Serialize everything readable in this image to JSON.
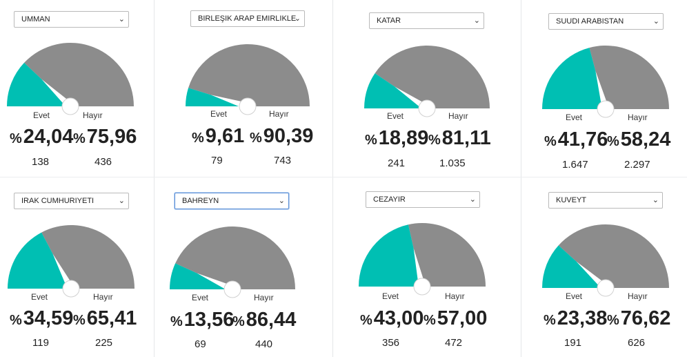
{
  "labels": {
    "yes": "Evet",
    "no": "Hayır",
    "percent_symbol": "%"
  },
  "colors": {
    "yes": "#00bfb3",
    "no": "#8c8c8c",
    "needle": "#ffffff"
  },
  "chart_data": [
    {
      "type": "gauge",
      "title": "UMMAN",
      "series": [
        {
          "name": "Evet",
          "percent": "24,04",
          "value": 24.04,
          "count": "138"
        },
        {
          "name": "Hayır",
          "percent": "75,96",
          "value": 75.96,
          "count": "436"
        }
      ]
    },
    {
      "type": "gauge",
      "title": "BIRLEŞIK ARAP EMIRLIKLE",
      "series": [
        {
          "name": "Evet",
          "percent": "9,61",
          "value": 9.61,
          "count": "79"
        },
        {
          "name": "Hayır",
          "percent": "90,39",
          "value": 90.39,
          "count": "743"
        }
      ]
    },
    {
      "type": "gauge",
      "title": "KATAR",
      "series": [
        {
          "name": "Evet",
          "percent": "18,89",
          "value": 18.89,
          "count": "241"
        },
        {
          "name": "Hayır",
          "percent": "81,11",
          "value": 81.11,
          "count": "1.035"
        }
      ]
    },
    {
      "type": "gauge",
      "title": "SUUDI ARABISTAN",
      "series": [
        {
          "name": "Evet",
          "percent": "41,76",
          "value": 41.76,
          "count": "1.647"
        },
        {
          "name": "Hayır",
          "percent": "58,24",
          "value": 58.24,
          "count": "2.297"
        }
      ]
    },
    {
      "type": "gauge",
      "title": "IRAK CUMHURIYETI",
      "series": [
        {
          "name": "Evet",
          "percent": "34,59",
          "value": 34.59,
          "count": "119"
        },
        {
          "name": "Hayır",
          "percent": "65,41",
          "value": 65.41,
          "count": "225"
        }
      ]
    },
    {
      "type": "gauge",
      "title": "BAHREYN",
      "series": [
        {
          "name": "Evet",
          "percent": "13,56",
          "value": 13.56,
          "count": "69"
        },
        {
          "name": "Hayır",
          "percent": "86,44",
          "value": 86.44,
          "count": "440"
        }
      ]
    },
    {
      "type": "gauge",
      "title": "CEZAYIR",
      "series": [
        {
          "name": "Evet",
          "percent": "43,00",
          "value": 43.0,
          "count": "356"
        },
        {
          "name": "Hayır",
          "percent": "57,00",
          "value": 57.0,
          "count": "472"
        }
      ]
    },
    {
      "type": "gauge",
      "title": "KUVEYT",
      "series": [
        {
          "name": "Evet",
          "percent": "23,38",
          "value": 23.38,
          "count": "191"
        },
        {
          "name": "Hayır",
          "percent": "76,62",
          "value": 76.62,
          "count": "626"
        }
      ]
    }
  ]
}
